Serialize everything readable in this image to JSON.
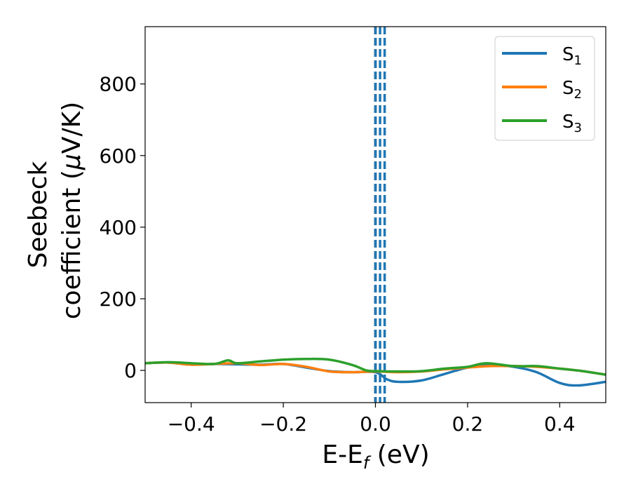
{
  "chart_data": {
    "type": "line",
    "xlabel": {
      "base": "E-E",
      "sub": "f",
      "unit": " (eV)"
    },
    "ylabel": {
      "line1": "Seebeck",
      "line2_text": "coefficient  (",
      "line2_greek": "μ",
      "line2_unit": "V/K)"
    },
    "xlim": [
      -0.5,
      0.5
    ],
    "ylim": [
      -90,
      960
    ],
    "x_ticks": [
      -0.4,
      -0.2,
      0.0,
      0.2,
      0.4
    ],
    "x_tick_labels": [
      "−0.4",
      "−0.2",
      "0.0",
      "0.2",
      "0.4"
    ],
    "y_ticks": [
      0,
      200,
      400,
      600,
      800
    ],
    "y_tick_labels": [
      "0",
      "200",
      "400",
      "600",
      "800"
    ],
    "grid": false,
    "legend_position": "top-right",
    "series": [
      {
        "name": "S",
        "sub": "1",
        "color": "#1f77b4",
        "x": [
          -0.5,
          -0.45,
          -0.4,
          -0.35,
          -0.3,
          -0.25,
          -0.2,
          -0.15,
          -0.1,
          -0.05,
          0.0,
          0.025,
          0.05,
          0.1,
          0.15,
          0.2,
          0.25,
          0.3,
          0.35,
          0.4,
          0.44,
          0.5
        ],
        "y": [
          20,
          22,
          16,
          18,
          17,
          16,
          18,
          8,
          -2,
          -5,
          -5,
          -25,
          -32,
          -28,
          -10,
          8,
          15,
          10,
          -5,
          -35,
          -42,
          -32
        ]
      },
      {
        "name": "S",
        "sub": "2",
        "color": "#ff7f0e",
        "x": [
          -0.5,
          -0.45,
          -0.4,
          -0.35,
          -0.3,
          -0.25,
          -0.2,
          -0.15,
          -0.1,
          -0.05,
          0.0,
          0.05,
          0.1,
          0.15,
          0.2,
          0.25,
          0.3,
          0.35,
          0.4,
          0.45,
          0.5
        ],
        "y": [
          20,
          22,
          16,
          18,
          20,
          15,
          18,
          10,
          -3,
          -5,
          -3,
          -5,
          -3,
          3,
          8,
          12,
          12,
          10,
          5,
          -2,
          -12
        ]
      },
      {
        "name": "S",
        "sub": "3",
        "color": "#2ca02c",
        "x": [
          -0.5,
          -0.45,
          -0.4,
          -0.35,
          -0.32,
          -0.3,
          -0.25,
          -0.2,
          -0.15,
          -0.1,
          -0.05,
          -0.02,
          0.0,
          0.05,
          0.1,
          0.15,
          0.2,
          0.24,
          0.3,
          0.35,
          0.4,
          0.45,
          0.5
        ],
        "y": [
          20,
          23,
          20,
          18,
          28,
          20,
          25,
          30,
          32,
          30,
          15,
          0,
          -2,
          -3,
          -2,
          5,
          10,
          20,
          12,
          12,
          5,
          -2,
          -12
        ]
      }
    ],
    "vertical_lines": [
      {
        "x": 0.0,
        "color": "#000000",
        "style": "dashed"
      },
      {
        "x": 0.0,
        "color": "#1f77b4",
        "style": "dashed"
      },
      {
        "x": 0.01,
        "color": "#1f77b4",
        "style": "dashed"
      },
      {
        "x": 0.02,
        "color": "#1f77b4",
        "style": "dashed"
      }
    ]
  }
}
